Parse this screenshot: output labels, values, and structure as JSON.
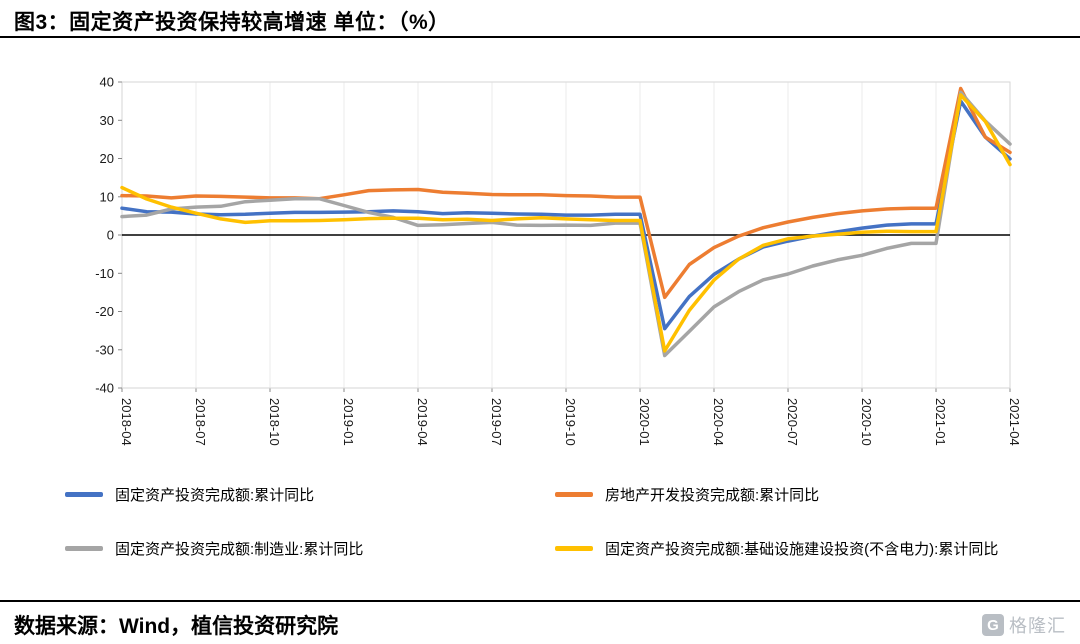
{
  "header": {
    "title": "图3：固定资产投资保持较高增速 单位：（%）"
  },
  "chart_data": {
    "type": "line",
    "title": "固定资产投资保持较高增速",
    "unit": "%",
    "ylim": [
      -40,
      40
    ],
    "y_ticks": [
      40,
      30,
      20,
      10,
      0,
      -10,
      -20,
      -30,
      -40
    ],
    "grid": "vertical-light",
    "legend_position": "bottom",
    "x": [
      "2018-04",
      "2018-05",
      "2018-06",
      "2018-07",
      "2018-08",
      "2018-09",
      "2018-10",
      "2018-11",
      "2018-12",
      "2019-01",
      "2019-02",
      "2019-03",
      "2019-04",
      "2019-05",
      "2019-06",
      "2019-07",
      "2019-08",
      "2019-09",
      "2019-10",
      "2019-11",
      "2019-12",
      "2020-01",
      "2020-02",
      "2020-03",
      "2020-04",
      "2020-05",
      "2020-06",
      "2020-07",
      "2020-08",
      "2020-09",
      "2020-10",
      "2020-11",
      "2020-12",
      "2021-01",
      "2021-02",
      "2021-03",
      "2021-04"
    ],
    "x_ticks": [
      "2018-04",
      "2018-07",
      "2018-10",
      "2019-01",
      "2019-04",
      "2019-07",
      "2019-10",
      "2020-01",
      "2020-04",
      "2020-07",
      "2020-10",
      "2021-01",
      "2021-04"
    ],
    "series": [
      {
        "name": "固定资产投资完成额:累计同比",
        "color": "#4472C4",
        "values": [
          7.0,
          6.1,
          6.0,
          5.5,
          5.3,
          5.4,
          5.7,
          5.9,
          5.9,
          6.0,
          6.1,
          6.3,
          6.1,
          5.6,
          5.8,
          5.7,
          5.5,
          5.4,
          5.2,
          5.2,
          5.4,
          5.4,
          -24.5,
          -16.1,
          -10.3,
          -6.3,
          -3.1,
          -1.6,
          -0.3,
          0.8,
          1.8,
          2.6,
          2.9,
          2.9,
          35.0,
          25.6,
          19.9
        ]
      },
      {
        "name": "房地产开发投资完成额:累计同比",
        "color": "#ED7D31",
        "values": [
          10.3,
          10.2,
          9.7,
          10.2,
          10.1,
          9.9,
          9.7,
          9.7,
          9.5,
          10.5,
          11.6,
          11.8,
          11.9,
          11.2,
          10.9,
          10.6,
          10.5,
          10.5,
          10.3,
          10.2,
          9.9,
          9.9,
          -16.3,
          -7.7,
          -3.3,
          -0.3,
          1.9,
          3.4,
          4.6,
          5.6,
          6.3,
          6.8,
          7.0,
          7.0,
          38.3,
          25.6,
          21.6
        ]
      },
      {
        "name": "固定资产投资完成额:制造业:累计同比",
        "color": "#A5A5A5",
        "values": [
          4.8,
          5.2,
          6.8,
          7.3,
          7.5,
          8.7,
          9.1,
          9.5,
          9.5,
          7.7,
          5.9,
          4.6,
          2.5,
          2.7,
          3.0,
          3.3,
          2.6,
          2.5,
          2.6,
          2.5,
          3.1,
          3.1,
          -31.5,
          -25.2,
          -18.8,
          -14.8,
          -11.7,
          -10.2,
          -8.1,
          -6.5,
          -5.3,
          -3.5,
          -2.2,
          -2.2,
          37.3,
          29.8,
          23.8
        ]
      },
      {
        "name": "固定资产投资完成额:基础设施建设投资(不含电力):累计同比",
        "color": "#FFC000",
        "values": [
          12.4,
          9.4,
          7.3,
          5.7,
          4.2,
          3.3,
          3.7,
          3.7,
          3.8,
          4.0,
          4.3,
          4.4,
          4.4,
          4.0,
          4.1,
          3.8,
          4.2,
          4.5,
          4.2,
          4.0,
          3.8,
          3.8,
          -30.3,
          -19.7,
          -11.8,
          -6.3,
          -2.7,
          -1.0,
          -0.3,
          0.2,
          0.7,
          1.0,
          0.9,
          0.9,
          36.6,
          29.7,
          18.4
        ]
      }
    ]
  },
  "footer": {
    "text": "数据来源：Wind，植信投资研究院"
  },
  "watermark": {
    "icon": "G",
    "text": "格隆汇"
  }
}
